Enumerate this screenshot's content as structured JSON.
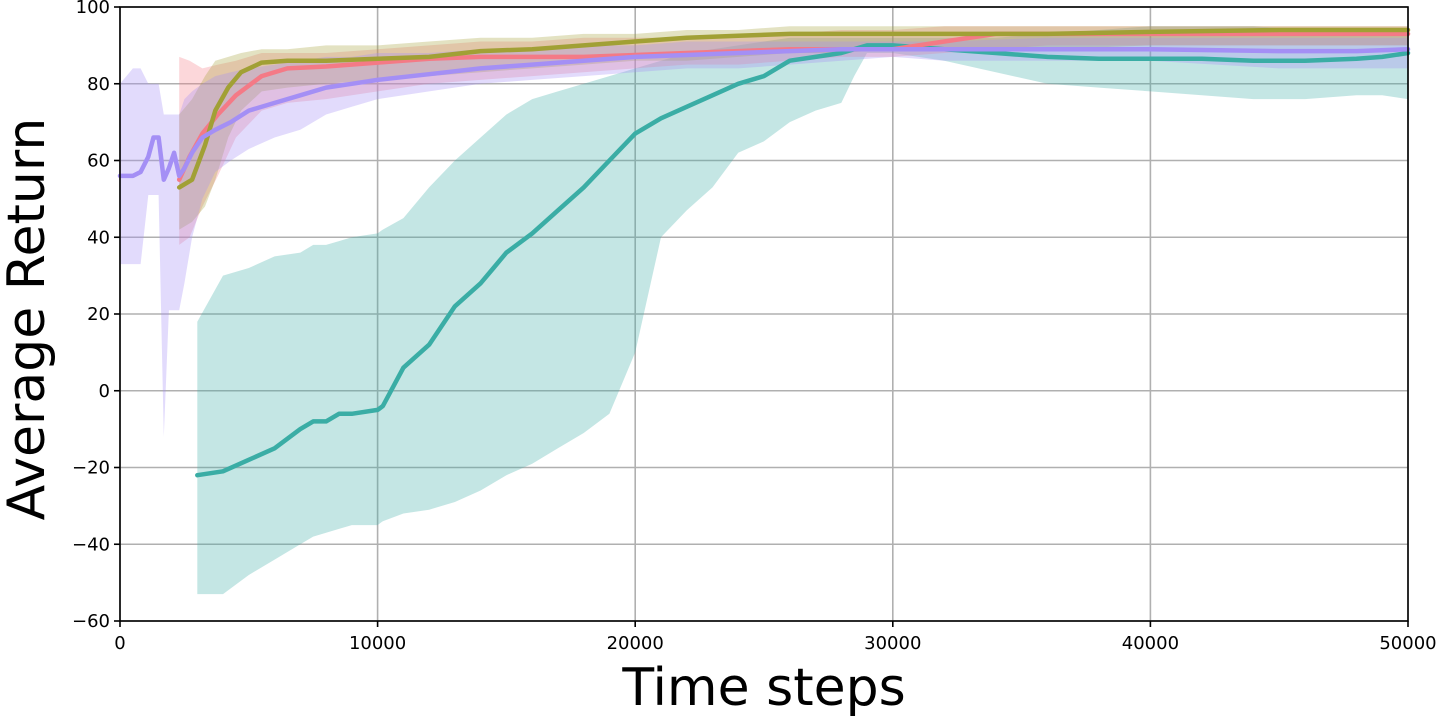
{
  "chart_data": {
    "type": "line",
    "title": "",
    "xlabel": "Time steps",
    "ylabel": "Average Return",
    "xlim": [
      0,
      50000
    ],
    "ylim": [
      -60,
      100
    ],
    "grid": true,
    "legend": "none",
    "x_ticks": [
      0,
      10000,
      20000,
      30000,
      40000,
      50000
    ],
    "x_tick_labels": [
      "0",
      "10000",
      "20000",
      "30000",
      "40000",
      "50000"
    ],
    "y_ticks": [
      -60,
      -40,
      -20,
      0,
      20,
      40,
      60,
      80,
      100
    ],
    "y_tick_labels": [
      "−60",
      "−40",
      "−20",
      "0",
      "20",
      "40",
      "60",
      "80",
      "100"
    ],
    "series": [
      {
        "color": "#3aada5",
        "band_color": "#3aada5",
        "band_opacity": 0.3,
        "x": [
          3000,
          4000,
          5000,
          6000,
          7000,
          7500,
          8000,
          8500,
          9000,
          10000,
          10200,
          11000,
          12000,
          13000,
          14000,
          14500,
          15000,
          16000,
          17000,
          18000,
          19000,
          20000,
          21000,
          22000,
          23000,
          24000,
          25000,
          26000,
          27000,
          28000,
          28500,
          29000,
          30000,
          32000,
          34000,
          36000,
          38000,
          40000,
          42000,
          44000,
          46000,
          48000,
          49000,
          50000
        ],
        "y": [
          -22,
          -21,
          -18,
          -15,
          -10,
          -8,
          -8,
          -6,
          -6,
          -5,
          -4,
          6,
          12,
          22,
          28,
          32,
          36,
          41,
          47,
          53,
          60,
          67,
          71,
          74,
          77,
          80,
          82,
          86,
          87,
          88,
          89,
          90,
          90,
          89,
          88,
          87,
          86.5,
          86.5,
          86.5,
          86,
          86,
          86.5,
          87,
          88
        ],
        "lower": [
          -53,
          -53,
          -48,
          -44,
          -40,
          -38,
          -37,
          -36,
          -35,
          -35,
          -34,
          -32,
          -31,
          -29,
          -26,
          -24,
          -22,
          -19,
          -15,
          -11,
          -6,
          10,
          40,
          47,
          53,
          62,
          65,
          70,
          73,
          75,
          82,
          88,
          88,
          86,
          83,
          80,
          79,
          78,
          77,
          76,
          76,
          77,
          77,
          76
        ],
        "upper": [
          18,
          30,
          32,
          35,
          36,
          38,
          38,
          39,
          40,
          41,
          42,
          45,
          53,
          60,
          66,
          69,
          72,
          76,
          78,
          80,
          82,
          84,
          86,
          88,
          89,
          90,
          91,
          92,
          92,
          92,
          92,
          92,
          92,
          92,
          92,
          93,
          94,
          95,
          95,
          95,
          94,
          94,
          94,
          94
        ]
      },
      {
        "color": "#f47a86",
        "band_color": "#f47a86",
        "band_opacity": 0.3,
        "x": [
          2300,
          2700,
          3200,
          3800,
          4500,
          5500,
          6500,
          8000,
          10000,
          12000,
          14000,
          16000,
          18000,
          20000,
          22000,
          24000,
          26000,
          28000,
          30000,
          32000,
          34000,
          36000,
          40000,
          45000,
          50000
        ],
        "y": [
          55,
          61,
          67,
          72,
          77,
          82,
          84,
          84.5,
          85.5,
          86.5,
          87,
          87,
          87,
          87.5,
          88,
          88.5,
          89,
          89,
          89,
          91,
          93,
          93,
          93,
          93,
          93
        ],
        "lower": [
          38,
          40,
          48,
          56,
          66,
          73,
          75,
          76,
          78,
          80,
          81,
          82,
          83,
          84,
          85,
          85,
          86,
          87,
          87,
          88,
          89,
          90,
          90,
          90,
          90
        ],
        "upper": [
          87,
          86,
          84,
          85,
          86,
          88,
          88,
          88,
          89,
          90,
          91,
          91,
          92,
          92,
          92,
          93,
          93,
          94,
          94,
          95,
          95,
          95,
          95,
          95,
          95
        ]
      },
      {
        "color": "#a1a035",
        "band_color": "#a1a035",
        "band_opacity": 0.3,
        "x": [
          2300,
          2800,
          3300,
          3700,
          4200,
          4700,
          5500,
          6500,
          8000,
          10000,
          12000,
          14000,
          16000,
          18000,
          20000,
          22000,
          24000,
          26000,
          28000,
          30000,
          32000,
          36000,
          40000,
          45000,
          50000
        ],
        "y": [
          53,
          55,
          64,
          73,
          79,
          83,
          85.5,
          86,
          86,
          86.5,
          87,
          88.5,
          89,
          90,
          91,
          92,
          92.5,
          93,
          93,
          93,
          93,
          93,
          93.5,
          94,
          94
        ],
        "lower": [
          42,
          44,
          48,
          55,
          66,
          73,
          78,
          79,
          80,
          81,
          82,
          83,
          84,
          85,
          86,
          86,
          87,
          88,
          88,
          89,
          89,
          89,
          90,
          90,
          90
        ],
        "upper": [
          72,
          76,
          82,
          86,
          87,
          88,
          89,
          89,
          90,
          90,
          91,
          92,
          92,
          93,
          93,
          94,
          94,
          95,
          95,
          95,
          95,
          95,
          95,
          95,
          95
        ]
      },
      {
        "color": "#a48ff5",
        "band_color": "#a48ff5",
        "band_opacity": 0.32,
        "x": [
          0,
          500,
          800,
          1100,
          1300,
          1500,
          1700,
          1900,
          2100,
          2300,
          2500,
          2800,
          3200,
          3700,
          4300,
          5000,
          6000,
          7000,
          8000,
          9000,
          10000,
          12000,
          14000,
          16000,
          18000,
          20000,
          22000,
          24000,
          26000,
          28000,
          30000,
          32000,
          36000,
          40000,
          45000,
          48000,
          50000
        ],
        "y": [
          56,
          56,
          57,
          61,
          66,
          66,
          55,
          58,
          62,
          56,
          58,
          62,
          66,
          68,
          70,
          73,
          75,
          77,
          79,
          80,
          81,
          82.5,
          84,
          85,
          86,
          87,
          87.5,
          88,
          88.5,
          89,
          89,
          89,
          89,
          89,
          88.5,
          88.5,
          89
        ],
        "lower": [
          33,
          33,
          33,
          51,
          51,
          51,
          -12,
          21,
          21,
          21,
          28,
          40,
          50,
          57,
          60,
          63,
          66,
          68,
          72,
          74,
          76,
          78,
          80,
          81,
          82,
          83,
          84,
          84,
          85,
          86,
          87,
          86,
          86,
          86,
          84,
          84,
          84
        ],
        "upper": [
          80,
          84,
          84,
          80,
          80,
          80,
          72,
          72,
          72,
          72,
          76,
          78,
          80,
          82,
          83,
          84,
          85,
          86,
          87,
          87,
          88,
          88,
          89,
          89,
          90,
          90,
          91,
          91,
          91,
          91,
          91,
          91,
          92,
          92,
          92,
          92,
          92
        ]
      }
    ]
  }
}
